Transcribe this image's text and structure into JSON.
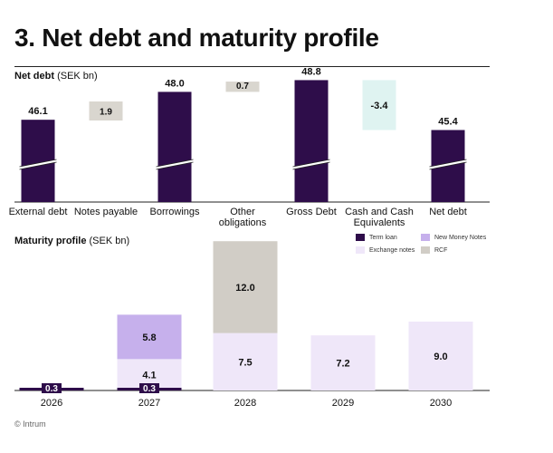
{
  "page": {
    "title": "3. Net debt and maturity profile",
    "footer": "© Intrum"
  },
  "colors": {
    "dark": "#2e0d4a",
    "gray": "#d9d6cf",
    "teal": "#dff3f1",
    "purple": "#c6b0ec",
    "lavender": "#efe7f9",
    "rcf": "#d1cdc6"
  },
  "chart_data": [
    {
      "type": "bar",
      "subtype": "waterfall",
      "title_bold": "Net debt",
      "title_unit": "(SEK bn)",
      "categories": [
        "External debt",
        "Notes payable",
        "Borrowings",
        "Other obligations",
        "Gross Debt",
        "Cash and Cash Equivalents",
        "Net debt"
      ],
      "category_lines": [
        [
          "External debt"
        ],
        [
          "Notes payable"
        ],
        [
          "Borrowings"
        ],
        [
          "Other",
          "obligations"
        ],
        [
          "Gross Debt"
        ],
        [
          "Cash and Cash",
          "Equivalents"
        ],
        [
          "Net debt"
        ]
      ],
      "values": [
        46.1,
        1.9,
        48.0,
        0.7,
        48.8,
        -3.4,
        45.4
      ],
      "labels": [
        "46.1",
        "1.9",
        "48.0",
        "0.7",
        "48.8",
        "-3.4",
        "45.4"
      ],
      "kinds": [
        "total",
        "delta",
        "total",
        "delta",
        "total",
        "delta",
        "total"
      ],
      "axis_break": true,
      "grid": false
    },
    {
      "type": "bar",
      "subtype": "stacked",
      "title_bold": "Maturity profile",
      "title_unit": "(SEK bn)",
      "categories": [
        "2026",
        "2027",
        "2028",
        "2029",
        "2030"
      ],
      "series": [
        {
          "name": "Term loan",
          "values": [
            0.3,
            0.3,
            0,
            0,
            0
          ]
        },
        {
          "name": "Exchange notes",
          "values": [
            0,
            4.1,
            7.5,
            7.2,
            9.0
          ]
        },
        {
          "name": "New Money Notes",
          "values": [
            0,
            5.8,
            0,
            0,
            0
          ]
        },
        {
          "name": "RCF",
          "values": [
            0,
            0,
            12.0,
            0,
            0
          ]
        }
      ],
      "legend": [
        {
          "name": "Term loan",
          "color": "#2e0d4a"
        },
        {
          "name": "New Money Notes",
          "color": "#c6b0ec"
        },
        {
          "name": "Exchange notes",
          "color": "#efe7f9"
        },
        {
          "name": "RCF",
          "color": "#d1cdc6"
        }
      ],
      "legend_position": "top-right",
      "ylim": [
        0,
        21
      ]
    }
  ]
}
